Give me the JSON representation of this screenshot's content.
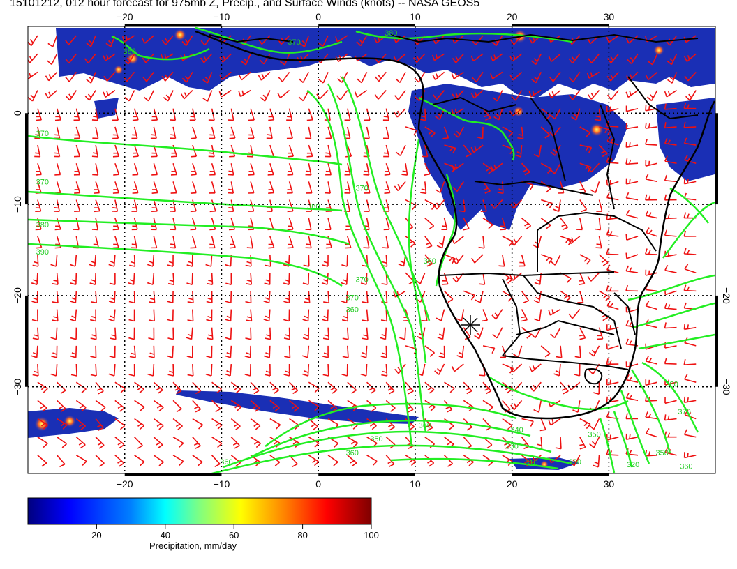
{
  "title": "15101212, 012 hour forecast for 975mb Z, Precip., and Surface Winds (knots) -- NASA GEOS5",
  "map": {
    "lon_range": [
      -30,
      41
    ],
    "lat_range": [
      -39.5,
      9.5
    ],
    "lon_ticks": [
      {
        "value": -20,
        "label": "−20"
      },
      {
        "value": -10,
        "label": "−10"
      },
      {
        "value": 0,
        "label": "0"
      },
      {
        "value": 10,
        "label": "10"
      },
      {
        "value": 20,
        "label": "20"
      },
      {
        "value": 30,
        "label": "30"
      }
    ],
    "lat_ticks": [
      {
        "value": 0,
        "label": "0"
      },
      {
        "value": -10,
        "label": "−10"
      },
      {
        "value": -20,
        "label": "−20"
      },
      {
        "value": -30,
        "label": "−30"
      }
    ],
    "right_lat_ticks": [
      {
        "value": -20,
        "label": "−20"
      },
      {
        "value": -30,
        "label": "−30"
      }
    ],
    "colors": {
      "wind": "#ee1111",
      "contour": "#22ee22",
      "land": "#000000",
      "grid": "#000000"
    },
    "contour_labels": [
      {
        "lon": -19.5,
        "lat": 6.5,
        "label": "380"
      },
      {
        "lon": -2.5,
        "lat": 7.5,
        "label": "370"
      },
      {
        "lon": 7.5,
        "lat": 8.5,
        "label": "380"
      },
      {
        "lon": -28.5,
        "lat": -2.5,
        "label": "370"
      },
      {
        "lon": -28.5,
        "lat": -7.8,
        "label": "370"
      },
      {
        "lon": -28.5,
        "lat": -12.5,
        "label": "380"
      },
      {
        "lon": -28.5,
        "lat": -15.5,
        "label": "390"
      },
      {
        "lon": -0.5,
        "lat": -10.5,
        "label": "380"
      },
      {
        "lon": 4.5,
        "lat": -8.5,
        "label": "370"
      },
      {
        "lon": 4.5,
        "lat": -18.5,
        "label": "370"
      },
      {
        "lon": 3.5,
        "lat": -20.5,
        "label": "370"
      },
      {
        "lon": 3.5,
        "lat": -21.8,
        "label": "360"
      },
      {
        "lon": 11.5,
        "lat": -16.5,
        "label": "360"
      },
      {
        "lon": 11.0,
        "lat": -34.5,
        "label": "360"
      },
      {
        "lon": 6.0,
        "lat": -36.0,
        "label": "350"
      },
      {
        "lon": 20.5,
        "lat": -35.0,
        "label": "340"
      },
      {
        "lon": 28.5,
        "lat": -35.5,
        "label": "350"
      },
      {
        "lon": 20.0,
        "lat": -36.8,
        "label": "330"
      },
      {
        "lon": 3.5,
        "lat": -37.5,
        "label": "360"
      },
      {
        "lon": -9.5,
        "lat": -38.5,
        "label": "360"
      },
      {
        "lon": 26.5,
        "lat": -38.5,
        "label": "330"
      },
      {
        "lon": 32.5,
        "lat": -38.8,
        "label": "320"
      },
      {
        "lon": 35.5,
        "lat": -37.5,
        "label": "350"
      },
      {
        "lon": 38.0,
        "lat": -39.0,
        "label": "360"
      },
      {
        "lon": 36.5,
        "lat": -30.0,
        "label": "380"
      },
      {
        "lon": 37.8,
        "lat": -33.0,
        "label": "370"
      },
      {
        "lon": 22.0,
        "lat": -38.6,
        "label": "310"
      }
    ]
  },
  "colorbar": {
    "label": "Precipitation, mm/day",
    "ticks": [
      {
        "value": 20,
        "label": "20"
      },
      {
        "value": 40,
        "label": "40"
      },
      {
        "value": 60,
        "label": "60"
      },
      {
        "value": 80,
        "label": "80"
      },
      {
        "value": 100,
        "label": "100"
      }
    ],
    "range": [
      0,
      100
    ],
    "stops": [
      "#00007f",
      "#0000ff",
      "#007fff",
      "#00ffff",
      "#7fff7f",
      "#ffff00",
      "#ff7f00",
      "#ff0000",
      "#7f0000"
    ]
  }
}
